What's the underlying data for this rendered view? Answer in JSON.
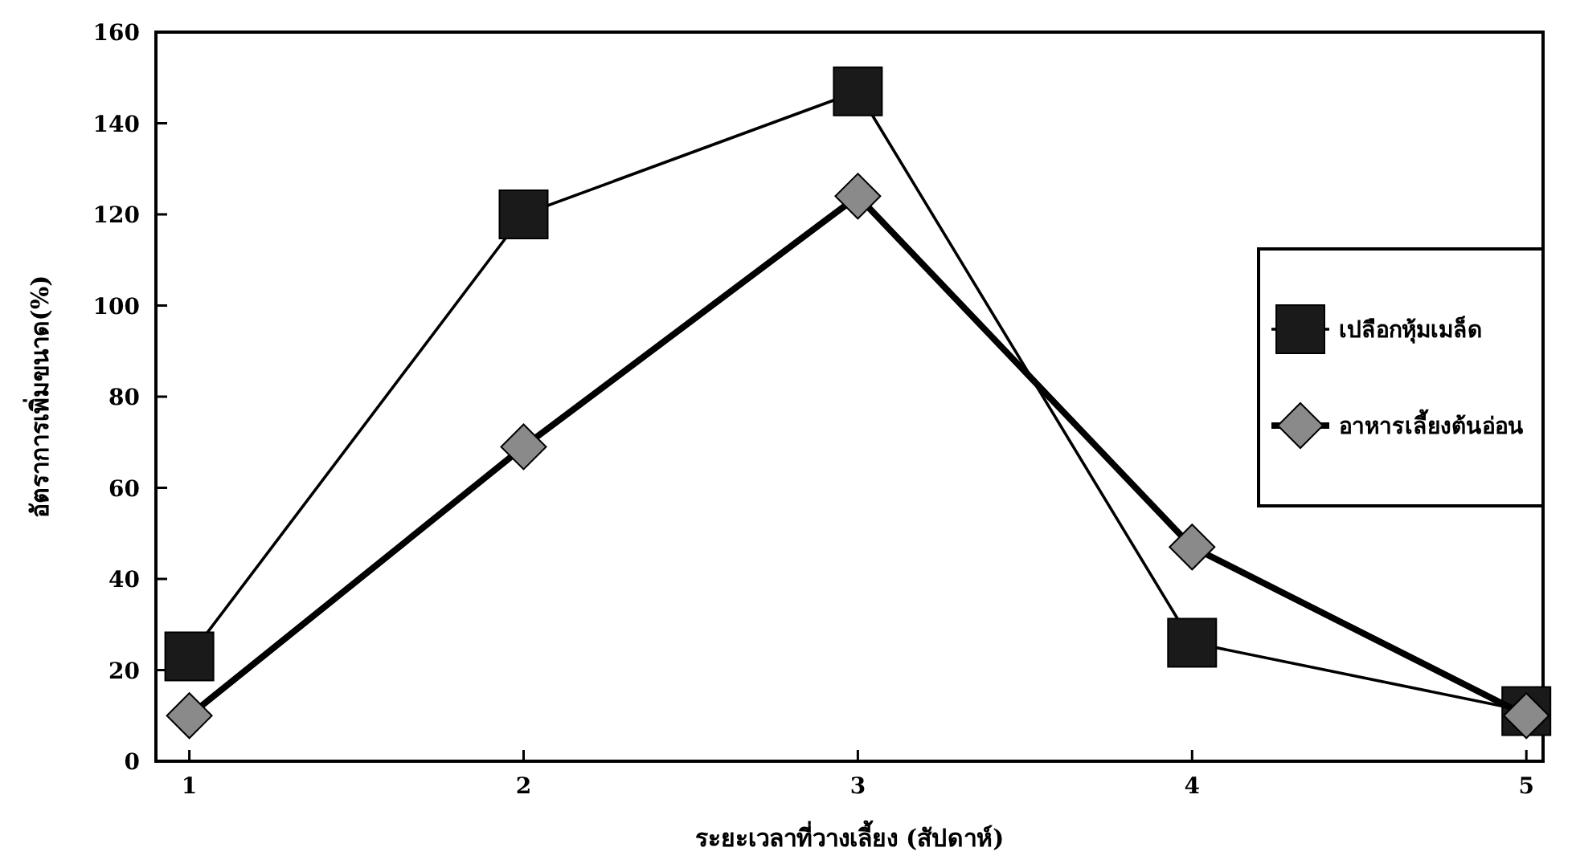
{
  "chart_data": {
    "type": "line",
    "xlabel": "ระยะเวลาที่วางเลี้ยง (สัปดาห์)",
    "ylabel": "อัตราการเพิ่มขนาด(%)",
    "x": [
      1,
      2,
      3,
      4,
      5
    ],
    "xlim": [
      0.9,
      5.05
    ],
    "xticks": [
      1,
      2,
      3,
      4,
      5
    ],
    "ylim": [
      0,
      160
    ],
    "yticks": [
      0,
      20,
      40,
      60,
      80,
      100,
      120,
      140,
      160
    ],
    "series": [
      {
        "name": "เปลือกหุ้มเมล็ด",
        "color": "#1a1a1a",
        "marker": "square",
        "values": [
          23,
          120,
          147,
          26,
          11
        ]
      },
      {
        "name": "อาหารเลี้ยงต้นอ่อน",
        "color": "#8a8a8a",
        "marker": "diamond",
        "values": [
          10,
          69,
          124,
          47,
          10
        ]
      }
    ],
    "legend": "right",
    "grid": false,
    "line_style": "solid"
  }
}
